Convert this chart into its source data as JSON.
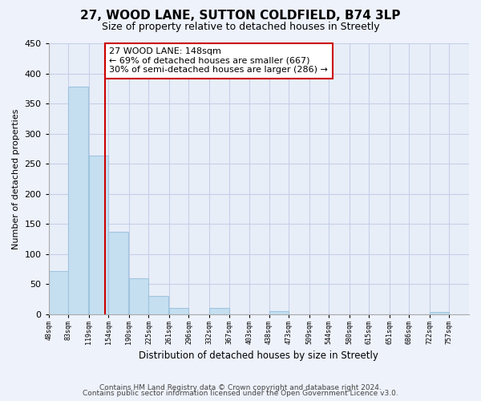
{
  "title": "27, WOOD LANE, SUTTON COLDFIELD, B74 3LP",
  "subtitle": "Size of property relative to detached houses in Streetly",
  "xlabel": "Distribution of detached houses by size in Streetly",
  "ylabel": "Number of detached properties",
  "bar_left_edges": [
    48,
    83,
    119,
    154,
    190,
    225,
    261,
    296,
    332,
    367,
    403,
    438,
    473,
    509,
    544,
    580,
    615,
    651,
    686,
    722
  ],
  "bar_heights": [
    72,
    378,
    263,
    137,
    60,
    30,
    10,
    0,
    10,
    0,
    0,
    5,
    0,
    0,
    0,
    0,
    0,
    0,
    0,
    3
  ],
  "bin_width": 35,
  "bar_color": "#c5dff0",
  "bar_edge_color": "#a0c4de",
  "tick_labels": [
    "48sqm",
    "83sqm",
    "119sqm",
    "154sqm",
    "190sqm",
    "225sqm",
    "261sqm",
    "296sqm",
    "332sqm",
    "367sqm",
    "403sqm",
    "438sqm",
    "473sqm",
    "509sqm",
    "544sqm",
    "580sqm",
    "615sqm",
    "651sqm",
    "686sqm",
    "722sqm",
    "757sqm"
  ],
  "vline_x": 148,
  "vline_color": "#cc0000",
  "ylim": [
    0,
    450
  ],
  "yticks": [
    0,
    50,
    100,
    150,
    200,
    250,
    300,
    350,
    400,
    450
  ],
  "annotation_title": "27 WOOD LANE: 148sqm",
  "annotation_line1": "← 69% of detached houses are smaller (667)",
  "annotation_line2": "30% of semi-detached houses are larger (286) →",
  "footer_line1": "Contains HM Land Registry data © Crown copyright and database right 2024.",
  "footer_line2": "Contains public sector information licensed under the Open Government Licence v3.0.",
  "bg_color": "#eef2fb",
  "plot_bg_color": "#e8eef8",
  "grid_color": "#c5cfe8"
}
